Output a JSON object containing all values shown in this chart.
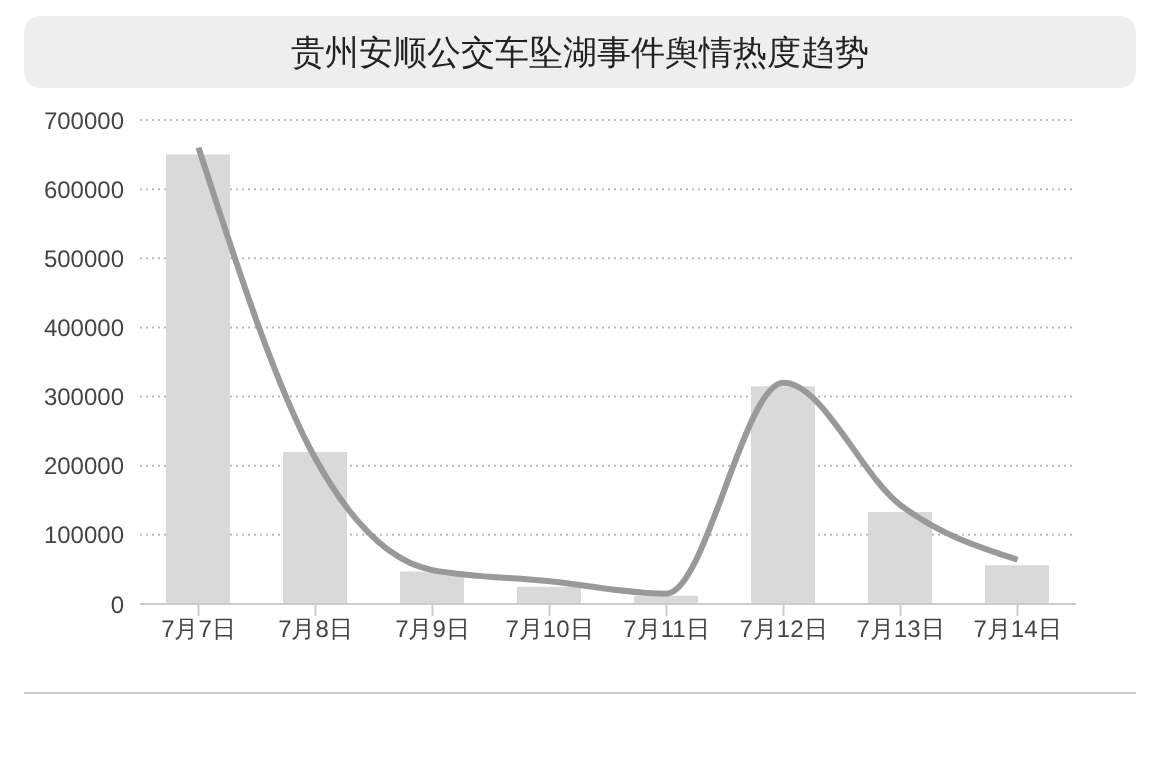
{
  "chart_data": {
    "type": "bar",
    "title": "贵州安顺公交车坠湖事件舆情热度趋势",
    "categories": [
      "7月7日",
      "7月8日",
      "7月9日",
      "7月10日",
      "7月11日",
      "7月12日",
      "7月13日",
      "7月14日"
    ],
    "series": [
      {
        "color": "#d9d9d9",
        "values": [
          650000,
          220000,
          47000,
          25000,
          12000,
          315000,
          133000,
          56000
        ]
      },
      {
        "type": "line",
        "color": "#999999",
        "values": [
          660000,
          210000,
          49000,
          33000,
          15000,
          320000,
          143000,
          64000
        ]
      }
    ],
    "ylim": [
      0,
      700000
    ],
    "yticks": [
      0,
      100000,
      200000,
      300000,
      400000,
      500000,
      600000,
      700000
    ],
    "grid": "y",
    "marker": "none",
    "line_style": "solid"
  }
}
